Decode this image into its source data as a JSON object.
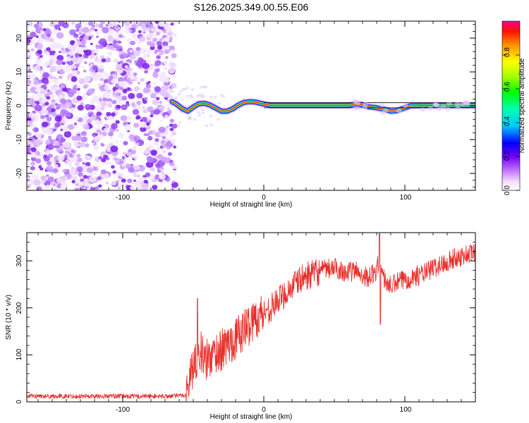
{
  "chart_data": [
    {
      "type": "heatmap",
      "title": "S126.2025.349.00.55.E06",
      "xlabel": "Height of straight line (km)",
      "ylabel": "Frequency (Hz)",
      "xlim": [
        -168,
        150
      ],
      "ylim": [
        -25,
        25
      ],
      "xticks": [
        -100,
        0,
        100
      ],
      "xtick_labels": [
        "-100",
        "0",
        "100"
      ],
      "yticks": [
        -20,
        -10,
        0,
        10,
        20
      ],
      "ytick_labels": [
        "-20",
        "-10",
        "0",
        "10",
        "20"
      ],
      "noise_region_x": [
        -168,
        -65
      ],
      "ridge": {
        "description": "narrow spectral ridge near 0 Hz",
        "x": [
          -65,
          -62,
          -58,
          -54,
          -50,
          -46,
          -42,
          -38,
          -34,
          -30,
          -26,
          -22,
          -18,
          -14,
          -10,
          -6,
          -2,
          5,
          20,
          40,
          60,
          66,
          70,
          74,
          80,
          86,
          90,
          94,
          98,
          104,
          120,
          140,
          150
        ],
        "freq": [
          1.2,
          0.5,
          -0.8,
          -1.6,
          -0.4,
          0.6,
          0.7,
          0.2,
          -0.7,
          -1.6,
          -1.6,
          -0.9,
          0.2,
          1.0,
          1.2,
          1.1,
          0.7,
          0.1,
          0.1,
          0.1,
          0.1,
          0.5,
          0.3,
          -0.3,
          -0.6,
          -1.1,
          -1.6,
          -1.5,
          -0.9,
          0.0,
          0.1,
          0.1,
          0.1
        ]
      },
      "colorbar": {
        "label": "Normalized spectral amplitude",
        "range": [
          0,
          1
        ],
        "ticks": [
          0.0,
          0.2,
          0.4,
          0.6,
          0.8
        ],
        "tick_labels": [
          "0.0",
          "0.2",
          "0.4",
          "0.6",
          "0.8"
        ]
      }
    },
    {
      "type": "line",
      "xlabel": "Height of straight line (km)",
      "ylabel": "SNR (10 * v/v)",
      "xlim": [
        -168,
        150
      ],
      "ylim": [
        0,
        360
      ],
      "xticks": [
        -100,
        0,
        100
      ],
      "xtick_labels": [
        "-100",
        "0",
        "100"
      ],
      "yticks": [
        0,
        100,
        200,
        300
      ],
      "ytick_labels": [
        "0",
        "100",
        "200",
        "300"
      ],
      "series": [
        {
          "name": "SNR",
          "color": "#e8302c",
          "x": [
            -168,
            -150,
            -130,
            -110,
            -90,
            -70,
            -60,
            -55,
            -52,
            -48,
            -46,
            -42,
            -38,
            -34,
            -30,
            -26,
            -22,
            -18,
            -14,
            -10,
            -5,
            0,
            5,
            10,
            15,
            20,
            25,
            30,
            35,
            40,
            45,
            50,
            55,
            60,
            65,
            70,
            75,
            80,
            82,
            85,
            90,
            95,
            100,
            105,
            110,
            115,
            120,
            125,
            130,
            135,
            140,
            145,
            150
          ],
          "values": [
            12,
            12,
            12,
            12,
            12,
            12,
            13,
            15,
            60,
            90,
            120,
            85,
            95,
            105,
            110,
            120,
            130,
            140,
            155,
            165,
            180,
            190,
            200,
            215,
            230,
            245,
            258,
            268,
            272,
            278,
            282,
            285,
            280,
            275,
            280,
            270,
            265,
            280,
            300,
            262,
            245,
            255,
            260,
            265,
            270,
            275,
            285,
            290,
            300,
            305,
            310,
            315,
            318
          ]
        }
      ],
      "annotations": [
        {
          "x": -47,
          "value": 220,
          "note": "spike"
        },
        {
          "x": 82,
          "value": 360,
          "note": "peak"
        },
        {
          "x": 82,
          "value": 165,
          "note": "dip"
        }
      ]
    }
  ],
  "colors": {
    "line": "#e8302c",
    "noise": "#8a3df0",
    "background": "#ffffff",
    "axis": "#000000"
  }
}
